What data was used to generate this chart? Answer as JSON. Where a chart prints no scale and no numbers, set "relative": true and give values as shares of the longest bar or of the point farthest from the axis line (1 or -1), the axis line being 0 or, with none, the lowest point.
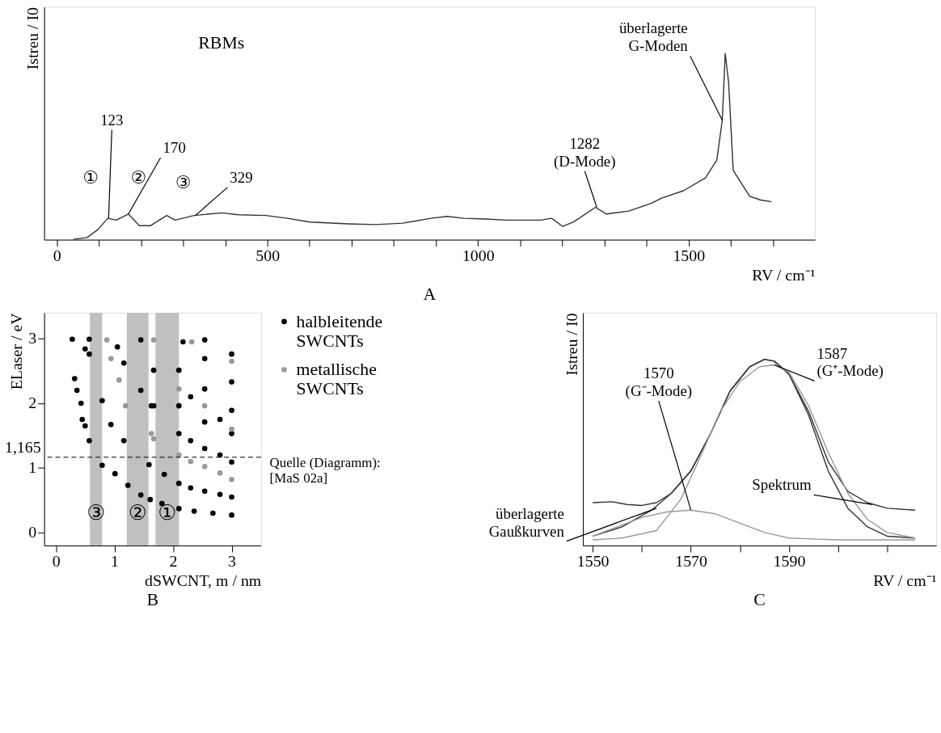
{
  "chart_data": [
    {
      "type": "line",
      "title": "A",
      "xlabel": "RV / cm⁻¹",
      "ylabel": "Istreu / I0",
      "relative": true,
      "x": [
        39,
        72,
        98,
        121,
        141,
        170,
        196,
        222,
        261,
        281,
        326,
        392,
        431,
        496,
        548,
        601,
        692,
        757,
        822,
        888,
        927,
        966,
        1018,
        1070,
        1149,
        1175,
        1201,
        1227,
        1279,
        1305,
        1358,
        1410,
        1436,
        1488,
        1540,
        1567,
        1580,
        1587,
        1595,
        1606,
        1645,
        1671,
        1697
      ],
      "series": [
        {
          "color": "#333333",
          "values": [
            0.002,
            0.012,
            0.055,
            0.115,
            0.105,
            0.138,
            0.075,
            0.075,
            0.13,
            0.105,
            0.13,
            0.144,
            0.134,
            0.13,
            0.115,
            0.095,
            0.085,
            0.081,
            0.089,
            0.115,
            0.125,
            0.115,
            0.111,
            0.105,
            0.105,
            0.115,
            0.071,
            0.095,
            0.174,
            0.138,
            0.154,
            0.194,
            0.223,
            0.263,
            0.332,
            0.427,
            0.642,
            1,
            0.846,
            0.372,
            0.233,
            0.213,
            0.204
          ]
        }
      ],
      "xlim": [
        -30,
        1800
      ],
      "xticks": [
        0,
        {
          "value": 100,
          "label": null
        },
        {
          "value": 200,
          "label": null
        },
        {
          "value": 300,
          "label": null
        },
        {
          "value": 400,
          "label": null
        },
        500,
        {
          "value": 600,
          "label": null
        },
        {
          "value": 700,
          "label": null
        },
        {
          "value": 800,
          "label": null
        },
        {
          "value": 900,
          "label": null
        },
        1000,
        {
          "value": 1100,
          "label": null
        },
        {
          "value": 1200,
          "label": null
        },
        {
          "value": 1300,
          "label": null
        },
        {
          "value": 1400,
          "label": null
        },
        1500,
        {
          "value": 1600,
          "label": null
        },
        {
          "value": 1700,
          "label": null
        }
      ],
      "grid": false,
      "tick_labels": "x",
      "line_style": "solid",
      "annotations": [
        "RBMs",
        "①",
        "②",
        "③",
        {
          "text": "123",
          "x": 123,
          "y": 0.115
        },
        {
          "text": "170",
          "x": 170,
          "y": 0.138
        },
        {
          "text": "329",
          "x": 329,
          "y": 0.13
        },
        {
          "text": "1282\n(D-Mode)",
          "x": 1282,
          "y": 0.174
        },
        {
          "text": "überlagerte\nG-Moden",
          "x": 1580,
          "y": 0.642
        }
      ]
    },
    {
      "type": "scatter",
      "title": "B",
      "xlabel": "dSWCNT, m / nm",
      "ylabel": "ELaser / eV",
      "series": [
        {
          "name": "halbleitende SWCNTs",
          "color": "#000000",
          "x": [
            0.79,
            1.01,
            1.23,
            1.45,
            1.61,
            1.81,
            2.1,
            2.36,
            2.68,
            3.0,
            0.79,
            0.94,
            1.16,
            1.59,
            1.85,
            2.1,
            2.54,
            3.0,
            1.16,
            1.45,
            1.63,
            2.1,
            2.54,
            3.0,
            0.28,
            0.32,
            0.36,
            0.43,
            0.45,
            0.5,
            0.57,
            0.5,
            0.57,
            0.57,
            1.05,
            1.45,
            2.1,
            2.54,
            3.0,
            2.1,
            2.54,
            3.0,
            2.17,
            2.54,
            3.0,
            2.54,
            3.0,
            1.67,
            1.67,
            2.3,
            2.8,
            2.3,
            2.8,
            2.3,
            2.8
          ],
          "values": [
            1.04,
            0.91,
            0.73,
            0.58,
            0.51,
            0.45,
            0.37,
            0.33,
            0.3,
            0.27,
            2.04,
            1.67,
            1.42,
            1.05,
            0.9,
            0.76,
            0.64,
            0.55,
            2.62,
            2.2,
            1.96,
            1.53,
            1.3,
            1.09,
            2.99,
            2.38,
            2.2,
            2.0,
            1.75,
            1.65,
            1.42,
            2.84,
            2.99,
            2.76,
            2.87,
            2.98,
            1.96,
            1.71,
            1.53,
            2.51,
            2.22,
            1.89,
            2.95,
            2.69,
            2.33,
            2.98,
            2.76,
            1.96,
            2.51,
            0.69,
            0.59,
            1.42,
            1.2,
            2.1,
            1.75
          ]
        },
        {
          "name": "metallische SWCNTs",
          "color": "#999999",
          "x": [
            0.87,
            0.94,
            1.08,
            1.19,
            1.63,
            1.67,
            2.1,
            2.54,
            3.0,
            2.1,
            2.54,
            3.0,
            2.32,
            3.0,
            1.67,
            2.3,
            2.8
          ],
          "values": [
            2.98,
            2.69,
            2.36,
            1.96,
            1.53,
            1.45,
            1.2,
            1.02,
            0.82,
            2.22,
            1.96,
            1.6,
            2.95,
            2.65,
            2.98,
            1.1,
            0.92
          ]
        }
      ],
      "xlim": [
        -0.2,
        3.5
      ],
      "ylim": [
        -0.2,
        3.4
      ],
      "xticks": [
        0,
        1,
        2,
        3
      ],
      "yticks": [
        0,
        1,
        2,
        3
      ],
      "grid": false,
      "legend": "right",
      "marker": "circle",
      "bands": [
        {
          "axis": "x",
          "from": 0.58,
          "to": 0.79,
          "label": "③",
          "color": "#c0c0c0"
        },
        {
          "axis": "x",
          "from": 1.21,
          "to": 1.58,
          "label": "②",
          "color": "#c0c0c0"
        },
        {
          "axis": "x",
          "from": 1.7,
          "to": 2.1,
          "label": "①",
          "color": "#c0c0c0"
        }
      ],
      "ref_lines": [
        {
          "axis": "y",
          "value": 1.165,
          "label": "1,165",
          "line_style": "dashed",
          "color": "#000000"
        }
      ],
      "annotations": [
        "Quelle (Diagramm):\n[MaS 02a]"
      ]
    },
    {
      "type": "line",
      "title": "C",
      "xlabel": "RV / cm⁻¹",
      "ylabel": "Istreu / I0",
      "relative": true,
      "series": [
        {
          "color": "#333333",
          "x": [
            1550,
            1554,
            1557,
            1560,
            1563,
            1566,
            1570,
            1574,
            1578,
            1582,
            1585,
            1587,
            1590,
            1594,
            1598,
            1602,
            1606,
            1610,
            1615.7
          ],
          "values": [
            0.23,
            0.235,
            0.22,
            0.215,
            0.23,
            0.28,
            0.4,
            0.6,
            0.83,
            0.96,
            1,
            0.99,
            0.92,
            0.72,
            0.45,
            0.29,
            0.23,
            0.2,
            0.19
          ]
        },
        {
          "color": "#333333",
          "x": [
            1550,
            1556,
            1562,
            1566,
            1570,
            1574,
            1578,
            1582,
            1585,
            1587,
            1590,
            1594,
            1598,
            1602,
            1606,
            1610,
            1615.7
          ],
          "values": [
            0.05,
            0.1,
            0.19,
            0.28,
            0.4,
            0.6,
            0.83,
            0.96,
            1,
            0.99,
            0.92,
            0.7,
            0.4,
            0.2,
            0.1,
            0.05,
            0.04
          ]
        },
        {
          "color": "#999999",
          "x": [
            1550,
            1555,
            1560,
            1565,
            1570,
            1575,
            1580,
            1585,
            1590,
            1600,
            1615.7
          ],
          "values": [
            0.05,
            0.1,
            0.15,
            0.18,
            0.19,
            0.17,
            0.12,
            0.07,
            0.04,
            0.03,
            0.03
          ]
        },
        {
          "color": "#999999",
          "x": [
            1550,
            1556,
            1563,
            1568,
            1572,
            1576,
            1580,
            1584,
            1587,
            1590,
            1594,
            1598,
            1602,
            1606,
            1610,
            1615.7
          ],
          "values": [
            0.03,
            0.04,
            0.08,
            0.25,
            0.48,
            0.72,
            0.88,
            0.96,
            0.97,
            0.93,
            0.75,
            0.5,
            0.28,
            0.14,
            0.07,
            0.04
          ]
        }
      ],
      "xlim": [
        1548,
        1620
      ],
      "xticks": [
        1550,
        {
          "value": 1560,
          "label": null
        },
        1570,
        {
          "value": 1580,
          "label": null
        },
        1590,
        {
          "value": 1600,
          "label": null
        },
        {
          "value": 1610,
          "label": null
        }
      ],
      "grid": false,
      "tick_labels": "x",
      "line_style": "solid",
      "annotations": [
        {
          "text": "1587\n(G⁺-Mode)",
          "x": 1587,
          "y": 0.97
        },
        {
          "text": "1570\n(G⁻-Mode)",
          "x": 1570,
          "y": 0.19
        },
        {
          "text": "Spektrum",
          "x": 1607,
          "y": 0.22
        },
        {
          "text": "überlagerte\nGaußkurven",
          "x": 1563,
          "y": 0.2
        }
      ]
    }
  ]
}
